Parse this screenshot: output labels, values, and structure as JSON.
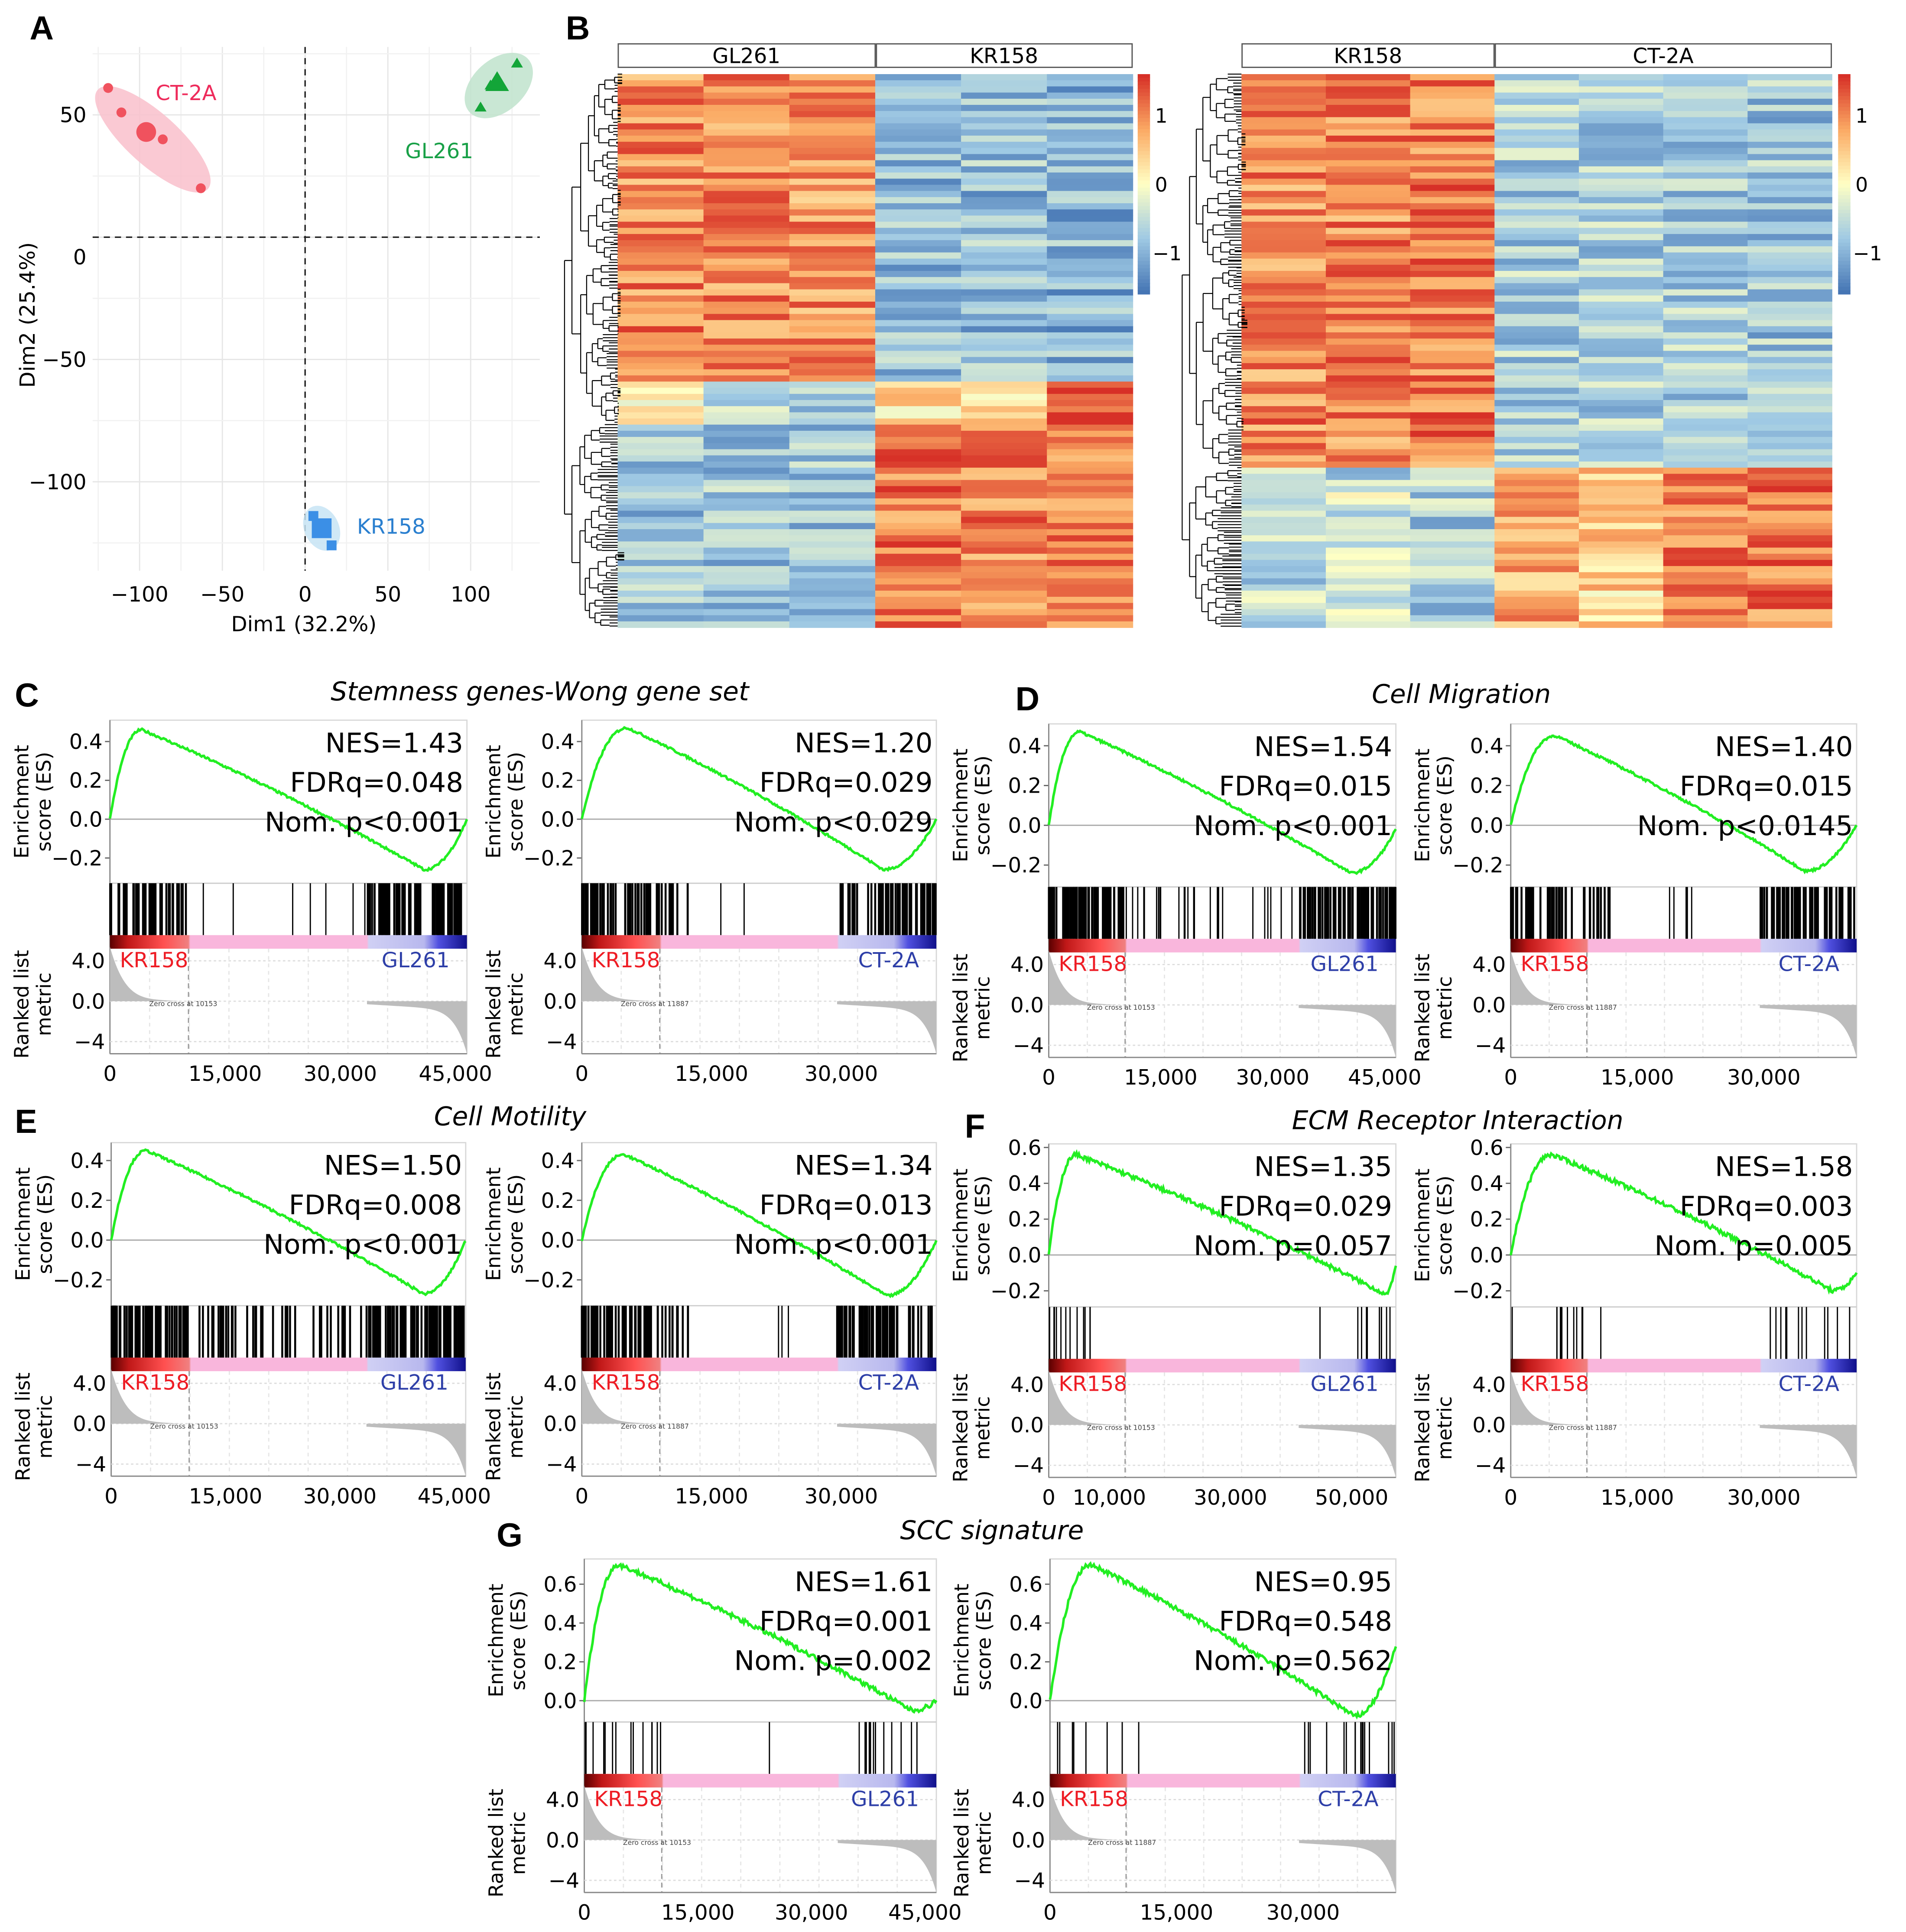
{
  "panel_labels": {
    "A": "A",
    "B": "B",
    "C": "C",
    "D": "D",
    "E": "E",
    "F": "F",
    "G": "G"
  },
  "chart_data": [
    {
      "id": "pca",
      "type": "scatter",
      "xlabel": "Dim1 (32.2%)",
      "ylabel": "Dim2 (25.4%)",
      "xlim": [
        -125,
        140
      ],
      "ylim": [
        -130,
        73
      ],
      "xticks": [
        -100,
        -50,
        0,
        50,
        100
      ],
      "yticks": [
        50,
        0,
        -50,
        -100
      ],
      "tick_labels_x": [
        "−100",
        "−50",
        "0",
        "50",
        "100"
      ],
      "tick_labels_y": [
        "50",
        "0",
        "−50",
        "−100"
      ],
      "grid": true,
      "series": [
        {
          "name": "CT-2A",
          "color": "#f0525e",
          "ellipse_color": "#f9c0cb",
          "marker": "circle",
          "points": [
            [
              -119,
              61
            ],
            [
              -111,
              51
            ],
            [
              -86,
              40
            ],
            [
              -63,
              20
            ]
          ],
          "centroid": [
            -96,
            43
          ]
        },
        {
          "name": "GL261",
          "color": "#13a538",
          "ellipse_color": "#bfe3cc",
          "marker": "triangle",
          "points": [
            [
              128,
              71
            ],
            [
              112,
              62
            ],
            [
              106,
              53
            ]
          ],
          "centroid": [
            116,
            63
          ]
        },
        {
          "name": "KR158",
          "color": "#3b8fe6",
          "ellipse_color": "#c7e4f5",
          "marker": "square",
          "points": [
            [
              5,
              -114
            ],
            [
              16,
              -126
            ]
          ],
          "centroid": [
            10,
            -119
          ]
        }
      ],
      "label_colors": {
        "CT-2A": "#ee2b5b",
        "GL261": "#18a047",
        "KR158": "#2a7fcf"
      }
    },
    {
      "id": "heatmap-left",
      "type": "heatmap",
      "groups": [
        {
          "name": "GL261",
          "columns": 3
        },
        {
          "name": "KR158",
          "columns": 3
        }
      ],
      "colorbar": {
        "range": [
          -1.6,
          1.6
        ],
        "ticks": [
          1,
          0,
          -1
        ],
        "tick_labels": [
          "1",
          "0",
          "−1"
        ]
      },
      "row_blocks": [
        {
          "rows": 50,
          "values": [
            1.0,
            1.0,
            0.9,
            -0.9,
            -0.9,
            -1.0
          ]
        },
        {
          "rows": 7,
          "values": [
            -0.1,
            -0.4,
            -0.8,
            0.3,
            0.5,
            1.6
          ]
        },
        {
          "rows": 33,
          "values": [
            -0.8,
            -0.8,
            -0.8,
            1.1,
            1.0,
            1.1
          ]
        }
      ]
    },
    {
      "id": "heatmap-right",
      "type": "heatmap",
      "groups": [
        {
          "name": "KR158",
          "columns": 3
        },
        {
          "name": "CT-2A",
          "columns": 4
        }
      ],
      "colorbar": {
        "range": [
          -1.6,
          1.6
        ],
        "ticks": [
          1,
          0,
          -1
        ],
        "tick_labels": [
          "1",
          "0",
          "−1"
        ]
      },
      "row_blocks": [
        {
          "rows": 64,
          "values": [
            1.0,
            1.0,
            1.1,
            -0.7,
            -0.7,
            -0.7,
            -0.8
          ]
        },
        {
          "rows": 4,
          "values": [
            -0.2,
            -0.6,
            -0.3,
            0.6,
            0.4,
            0.9,
            1.5
          ]
        },
        {
          "rows": 22,
          "values": [
            -0.6,
            -0.4,
            -0.7,
            0.8,
            0.4,
            1.1,
            1.1
          ]
        }
      ]
    },
    {
      "id": "gsea-C",
      "type": "line",
      "panel": "C",
      "title": "Stemness genes-Wong gene set",
      "subplots": [
        {
          "nes": "NES=1.43",
          "fdr": "FDRq=0.048",
          "p": "Nom. p<0.001",
          "left": "KR158",
          "right": "GL261",
          "zero_cross": "Zero cross at 10153",
          "xmax": 46500,
          "xticks": [
            0,
            15000,
            30000,
            45000
          ],
          "xtick_labels": [
            "0",
            "15,000",
            "30,000",
            "45,000"
          ],
          "ylim": [
            -0.33,
            0.51
          ],
          "yticks": [
            0.4,
            0.2,
            0.0,
            -0.2
          ],
          "ytick_labels": [
            "0.4",
            "0.2",
            "0.0",
            "−0.2"
          ],
          "es_peak": [
            0.09,
            0.46
          ],
          "es_min": [
            0.88,
            -0.26
          ],
          "es_end": 0.0
        },
        {
          "nes": "NES=1.20",
          "fdr": "FDRq=0.029",
          "p": "Nom. p<0.029",
          "left": "KR158",
          "right": "CT-2A",
          "zero_cross": "Zero cross at 11887",
          "xmax": 41000,
          "xticks": [
            0,
            15000,
            30000
          ],
          "xtick_labels": [
            "0",
            "15,000",
            "30,000"
          ],
          "ylim": [
            -0.33,
            0.51
          ],
          "yticks": [
            0.4,
            0.2,
            0.0,
            -0.2
          ],
          "ytick_labels": [
            "0.4",
            "0.2",
            "0.0",
            "−0.2"
          ],
          "es_peak": [
            0.13,
            0.47
          ],
          "es_min": [
            0.85,
            -0.26
          ],
          "es_end": 0.0
        }
      ]
    },
    {
      "id": "gsea-D",
      "type": "line",
      "panel": "D",
      "title": "Cell Migration",
      "subplots": [
        {
          "nes": "NES=1.54",
          "fdr": "FDRq=0.015",
          "p": "Nom. p<0.001",
          "left": "KR158",
          "right": "GL261",
          "zero_cross": "Zero cross at 10153",
          "xmax": 46500,
          "xticks": [
            0,
            15000,
            30000,
            45000
          ],
          "xtick_labels": [
            "0",
            "15,000",
            "30,000",
            "45,000"
          ],
          "ylim": [
            -0.31,
            0.51
          ],
          "yticks": [
            0.4,
            0.2,
            0.0,
            -0.2
          ],
          "ytick_labels": [
            "0.4",
            "0.2",
            "0.0",
            "−0.2"
          ],
          "es_peak": [
            0.09,
            0.47
          ],
          "es_min": [
            0.87,
            -0.24
          ],
          "es_end": -0.02
        },
        {
          "nes": "NES=1.40",
          "fdr": "FDRq=0.015",
          "p": "Nom. p<0.0145",
          "left": "KR158",
          "right": "CT-2A",
          "zero_cross": "Zero cross at 11887",
          "xmax": 41000,
          "xticks": [
            0,
            15000,
            30000
          ],
          "xtick_labels": [
            "0",
            "15,000",
            "30,000"
          ],
          "ylim": [
            -0.31,
            0.51
          ],
          "yticks": [
            0.4,
            0.2,
            0.0,
            -0.2
          ],
          "ytick_labels": [
            "0.4",
            "0.2",
            "0.0",
            "−0.2"
          ],
          "es_peak": [
            0.13,
            0.45
          ],
          "es_min": [
            0.85,
            -0.23
          ],
          "es_end": 0.0
        }
      ]
    },
    {
      "id": "gsea-E",
      "type": "line",
      "panel": "E",
      "title": "Cell Motility",
      "subplots": [
        {
          "nes": "NES=1.50",
          "fdr": "FDRq=0.008",
          "p": "Nom. p<0.001",
          "left": "KR158",
          "right": "GL261",
          "zero_cross": "Zero cross at 10153",
          "xmax": 46500,
          "xticks": [
            0,
            15000,
            30000,
            45000
          ],
          "xtick_labels": [
            "0",
            "15,000",
            "30,000",
            "45,000"
          ],
          "ylim": [
            -0.33,
            0.49
          ],
          "yticks": [
            0.4,
            0.2,
            0.0,
            -0.2
          ],
          "ytick_labels": [
            "0.4",
            "0.2",
            "0.0",
            "−0.2"
          ],
          "es_peak": [
            0.1,
            0.45
          ],
          "es_min": [
            0.88,
            -0.27
          ],
          "es_end": 0.0
        },
        {
          "nes": "NES=1.34",
          "fdr": "FDRq=0.013",
          "p": "Nom. p<0.001",
          "left": "KR158",
          "right": "CT-2A",
          "zero_cross": "Zero cross at 11887",
          "xmax": 41000,
          "xticks": [
            0,
            15000,
            30000
          ],
          "xtick_labels": [
            "0",
            "15,000",
            "30,000"
          ],
          "ylim": [
            -0.33,
            0.49
          ],
          "yticks": [
            0.4,
            0.2,
            0.0,
            -0.2
          ],
          "ytick_labels": [
            "0.4",
            "0.2",
            "0.0",
            "−0.2"
          ],
          "es_peak": [
            0.12,
            0.43
          ],
          "es_min": [
            0.86,
            -0.28
          ],
          "es_end": 0.0
        }
      ]
    },
    {
      "id": "gsea-F",
      "type": "line",
      "panel": "F",
      "title": "ECM Receptor Interaction",
      "subplots": [
        {
          "nes": "NES=1.35",
          "fdr": "FDRq=0.029",
          "p": "Nom. p=0.057",
          "left": "KR158",
          "right": "GL261",
          "zero_cross": "Zero cross at 10153",
          "xmax": 57300,
          "xticks": [
            0,
            10000,
            30000,
            50000
          ],
          "xtick_labels": [
            "0",
            "10,000",
            "30,000",
            "50,000"
          ],
          "ylim": [
            -0.29,
            0.62
          ],
          "yticks": [
            0.6,
            0.4,
            0.2,
            0.0,
            -0.2
          ],
          "ytick_labels": [
            "0.6",
            "0.4",
            "0.2",
            "0.0",
            "−0.2"
          ],
          "es_peak": [
            0.08,
            0.56
          ],
          "es_min": [
            0.97,
            -0.22
          ],
          "es_end": -0.05
        },
        {
          "nes": "NES=1.58",
          "fdr": "FDRq=0.003",
          "p": "Nom. p=0.005",
          "left": "KR158",
          "right": "CT-2A",
          "zero_cross": "Zero cross at 11887",
          "xmax": 41000,
          "xticks": [
            0,
            15000,
            30000
          ],
          "xtick_labels": [
            "0",
            "15,000",
            "30,000"
          ],
          "ylim": [
            -0.29,
            0.62
          ],
          "yticks": [
            0.6,
            0.4,
            0.2,
            0.0,
            -0.2
          ],
          "ytick_labels": [
            "0.6",
            "0.4",
            "0.2",
            "0.0",
            "−0.2"
          ],
          "es_peak": [
            0.12,
            0.56
          ],
          "es_min": [
            0.93,
            -0.2
          ],
          "es_end": -0.1
        }
      ]
    },
    {
      "id": "gsea-G",
      "type": "line",
      "panel": "G",
      "title": "SCC signature",
      "subplots": [
        {
          "nes": "NES=1.61",
          "fdr": "FDRq=0.001",
          "p": "Nom. p=0.002",
          "left": "KR158",
          "right": "GL261",
          "zero_cross": "Zero cross at 10153",
          "xmax": 46500,
          "xticks": [
            0,
            15000,
            30000,
            45000
          ],
          "xtick_labels": [
            "0",
            "15,000",
            "30,000",
            "45,000"
          ],
          "ylim": [
            -0.11,
            0.73
          ],
          "yticks": [
            0.6,
            0.4,
            0.2,
            0.0
          ],
          "ytick_labels": [
            "0.6",
            "0.4",
            "0.2",
            "0.0"
          ],
          "es_peak": [
            0.1,
            0.7
          ],
          "es_min": [
            0.93,
            -0.05
          ],
          "es_end": 0.0
        },
        {
          "nes": "NES=0.95",
          "fdr": "FDRq=0.548",
          "p": "Nom. p=0.562",
          "left": "KR158",
          "right": "CT-2A",
          "zero_cross": "Zero cross at 11887",
          "xmax": 41000,
          "xticks": [
            0,
            15000,
            30000
          ],
          "xtick_labels": [
            "0",
            "15,000",
            "30,000"
          ],
          "ylim": [
            -0.11,
            0.73
          ],
          "yticks": [
            0.6,
            0.4,
            0.2,
            0.0
          ],
          "ytick_labels": [
            "0.6",
            "0.4",
            "0.2",
            "0.0"
          ],
          "es_peak": [
            0.12,
            0.7
          ],
          "es_min": [
            0.88,
            -0.08
          ],
          "es_end": 0.28
        }
      ]
    }
  ],
  "gsea_axis": {
    "es_label_1": "Enrichment",
    "es_label_2": "score (ES)",
    "rank_label_1": "Ranked list",
    "rank_label_2": "metric",
    "rank_ticks": [
      "4.0",
      "0.0",
      "−4"
    ]
  },
  "colors": {
    "es_line": "#22ee22",
    "left_label": "#ee1c24",
    "right_label": "#2e3fa8"
  }
}
